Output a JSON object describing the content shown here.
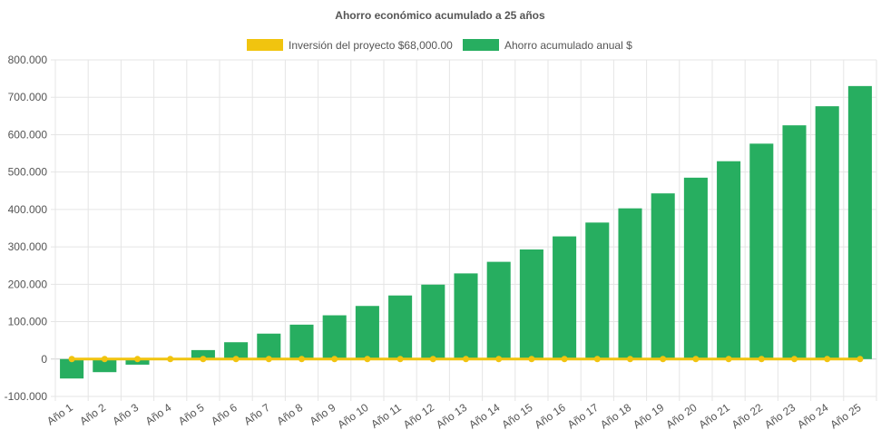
{
  "chart_data": {
    "type": "bar",
    "title": "Ahorro económico acumulado a 25 años",
    "xlabel": "",
    "ylabel": "",
    "ylim": [
      -100000,
      800000
    ],
    "yticks": [
      800000,
      700000,
      600000,
      500000,
      400000,
      300000,
      200000,
      100000,
      0,
      -100000
    ],
    "ytick_labels": [
      "800.000",
      "700.000",
      "600.000",
      "500.000",
      "400.000",
      "300.000",
      "200.000",
      "100.000",
      "0",
      "-100.000"
    ],
    "grid": true,
    "legend_position": "top",
    "categories": [
      "Año 1",
      "Año 2",
      "Año 3",
      "Año 4",
      "Año 5",
      "Año 6",
      "Año 7",
      "Año 8",
      "Año 9",
      "Año 10",
      "Año 11",
      "Año 12",
      "Año 13",
      "Año 14",
      "Año 15",
      "Año 16",
      "Año 17",
      "Año 18",
      "Año 19",
      "Año 20",
      "Año 21",
      "Año 22",
      "Año 23",
      "Año 24",
      "Año 25"
    ],
    "series": [
      {
        "name": "Inversión del proyecto $68,000.00",
        "type": "line",
        "color": "#f1c40f",
        "values": [
          0,
          0,
          0,
          0,
          0,
          0,
          0,
          0,
          0,
          0,
          0,
          0,
          0,
          0,
          0,
          0,
          0,
          0,
          0,
          0,
          0,
          0,
          0,
          0,
          0
        ]
      },
      {
        "name": "Ahorro acumulado anual $",
        "type": "bar",
        "color": "#27ae60",
        "values": [
          -52000,
          -35000,
          -15000,
          3000,
          24000,
          45000,
          68000,
          92000,
          117000,
          142000,
          170000,
          199000,
          229000,
          260000,
          293000,
          328000,
          365000,
          403000,
          443000,
          485000,
          529000,
          576000,
          625000,
          676000,
          730000
        ]
      }
    ]
  }
}
